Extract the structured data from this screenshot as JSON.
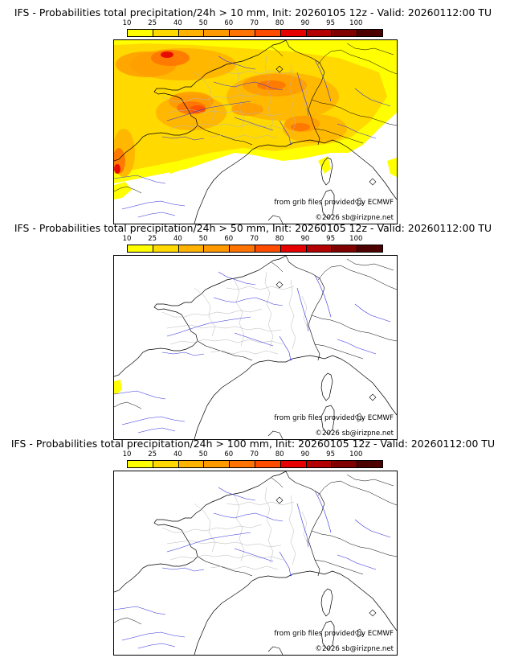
{
  "colorbar": {
    "ticks": [
      "10",
      "25",
      "40",
      "50",
      "60",
      "70",
      "80",
      "90",
      "95",
      "100"
    ],
    "colors": [
      "#ffff00",
      "#ffd900",
      "#ffb300",
      "#ff9900",
      "#ff7300",
      "#ff4d00",
      "#e60000",
      "#b30000",
      "#800000",
      "#4d0000"
    ]
  },
  "panels": [
    {
      "title": "IFS - Probabilities total precipitation/24h > 10 mm, Init: 20260105 12z - Valid: 20260112:00 TU"
    },
    {
      "title": "IFS - Probabilities total precipitation/24h > 50 mm, Init: 20260105 12z - Valid: 20260112:00 TU"
    },
    {
      "title": "IFS - Probabilities total precipitation/24h > 100 mm, Init: 20260105 12z - Valid: 20260112:00 TU"
    }
  ],
  "credits": {
    "source": "from grib files provided by ECMWF",
    "copyright": "©2026 sb@irizpne.net"
  }
}
